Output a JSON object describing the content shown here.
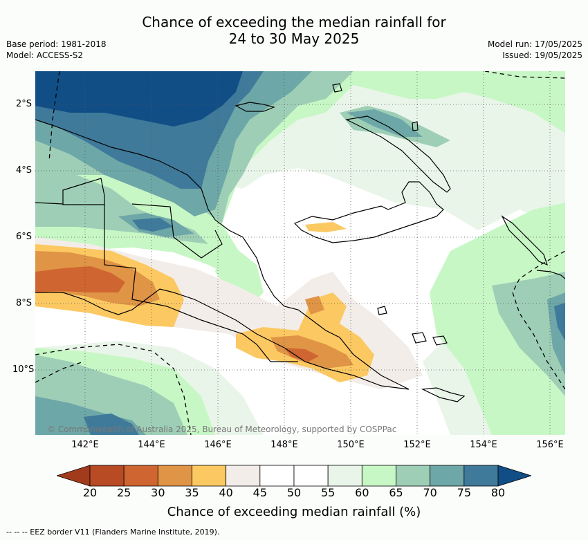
{
  "title": {
    "line1": "Chance of exceeding the median rainfall for",
    "line2": "24 to 30 May 2025"
  },
  "meta": {
    "base_period": "Base period: 1981-2018",
    "model": "Model: ACCESS-S2",
    "model_run": "Model run: 17/05/2025",
    "issued": "Issued: 19/05/2025"
  },
  "map": {
    "x_ticks": [
      "142°E",
      "144°E",
      "146°E",
      "148°E",
      "150°E",
      "152°E",
      "154°E",
      "156°E"
    ],
    "y_ticks": [
      "2°S",
      "4°S",
      "6°S",
      "8°S",
      "10°S"
    ],
    "copyright": "© Commonwealth of Australia 2025, Bureau of Meteorology, supported by COSPPac"
  },
  "colorbar": {
    "title": "Chance of exceeding median rainfall (%)",
    "labels": [
      "20",
      "25",
      "30",
      "35",
      "40",
      "45",
      "50",
      "55",
      "60",
      "65",
      "70",
      "75",
      "80"
    ],
    "colors": [
      "#a23b1c",
      "#b84a24",
      "#cf6530",
      "#e09445",
      "#fcc862",
      "#f2ede8",
      "#ffffff",
      "#ffffff",
      "#eaf5ea",
      "#c8f7c6",
      "#9ecfb6",
      "#6ea7a7",
      "#3f7a9a",
      "#114e86"
    ]
  },
  "footnote": "-- -- -- EEZ border V11 (Flanders Marine Institute, 2019)."
}
